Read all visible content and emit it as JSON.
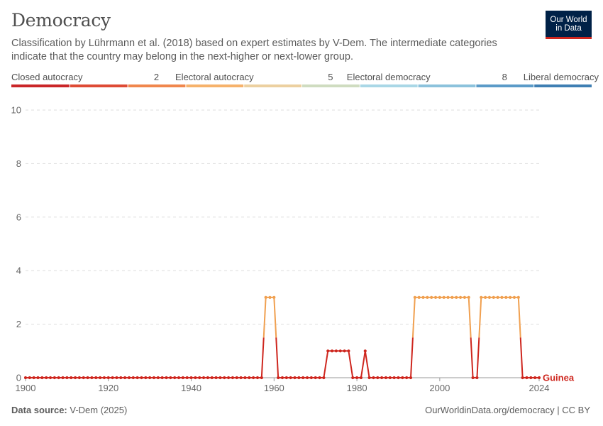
{
  "header": {
    "title": "Democracy",
    "subtitle": "Classification by Lührmann et al. (2018) based on expert estimates by V-Dem. The intermediate categories indicate that the country may belong in the next-higher or next-lower group."
  },
  "logo": {
    "line1": "Our World",
    "line2": "in Data",
    "bg": "#002147",
    "accent": "#ce261e"
  },
  "legend": {
    "labels": [
      "Closed autocracy",
      "2",
      "Electoral autocracy",
      "5",
      "Electoral democracy",
      "8",
      "Liberal democracy"
    ],
    "colors": [
      "#ca2628",
      "#de4b35",
      "#f0874d",
      "#f6b26b",
      "#ecd0a0",
      "#cfdcc0",
      "#a9d7e6",
      "#8cc2dc",
      "#5b9bc8",
      "#3f7fb3"
    ]
  },
  "footer": {
    "source_label": "Data source:",
    "source_value": "V-Dem (2025)",
    "credit": "OurWorldinData.org/democracy | CC BY"
  },
  "chart_data": {
    "type": "line",
    "title": "Democracy",
    "xlabel": "",
    "ylabel": "",
    "xlim": [
      1900,
      2024
    ],
    "ylim": [
      0,
      10
    ],
    "x_ticks": [
      "1900",
      "1920",
      "1940",
      "1960",
      "1980",
      "2000",
      "2024"
    ],
    "y_ticks": [
      "0",
      "2",
      "4",
      "6",
      "8",
      "10"
    ],
    "grid": "horizontal dashed",
    "series": [
      {
        "name": "Guinea",
        "color": "#ce261e",
        "high_color": "#f0a050",
        "start_year": 1900,
        "end_year": 2024,
        "segments": [
          {
            "from": 1900,
            "to": 1957,
            "value": 0
          },
          {
            "from": 1958,
            "to": 1960,
            "value": 3
          },
          {
            "from": 1961,
            "to": 1972,
            "value": 0
          },
          {
            "from": 1973,
            "to": 1978,
            "value": 1
          },
          {
            "from": 1979,
            "to": 1981,
            "value": 0
          },
          {
            "from": 1982,
            "to": 1982,
            "value": 1
          },
          {
            "from": 1983,
            "to": 1993,
            "value": 0
          },
          {
            "from": 1994,
            "to": 2007,
            "value": 3
          },
          {
            "from": 2008,
            "to": 2009,
            "value": 0
          },
          {
            "from": 2010,
            "to": 2019,
            "value": 3
          },
          {
            "from": 2020,
            "to": 2024,
            "value": 0
          }
        ]
      }
    ]
  }
}
